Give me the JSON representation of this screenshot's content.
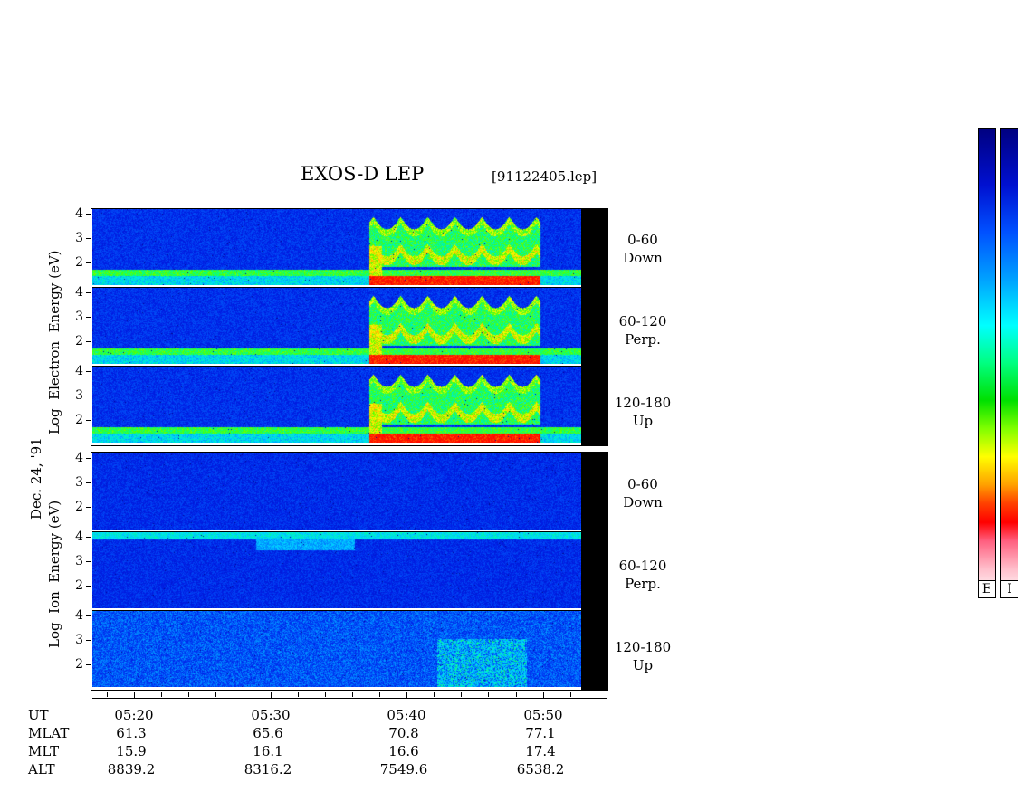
{
  "title": "EXOS-D LEP",
  "file_id": "[91122405.lep]",
  "date_label": "Dec. 24, '91",
  "electron_label": [
    "Log",
    "Electron",
    "Energy",
    "(eV)"
  ],
  "ion_label": [
    "Log",
    "Ion",
    "Energy",
    "(eV)"
  ],
  "y_ticks": [
    "4",
    "3",
    "2"
  ],
  "sectors": [
    {
      "range": "0-60",
      "dir": "Down"
    },
    {
      "range": "60-120",
      "dir": "Perp."
    },
    {
      "range": "120-180",
      "dir": "Up"
    }
  ],
  "colorbars": [
    {
      "label": "E"
    },
    {
      "label": "I"
    }
  ],
  "colors": {
    "spectrogram_bg": "#0010c8",
    "strip": "#000000"
  },
  "chart_data": {
    "type": "heatmap",
    "title": "EXOS-D LEP",
    "x_axis": {
      "row_labels": [
        "UT",
        "MLAT",
        "MLT",
        "ALT"
      ],
      "ticks": [
        {
          "UT": "05:20",
          "MLAT": "61.3",
          "MLT": "15.9",
          "ALT": "8839.2"
        },
        {
          "UT": "05:30",
          "MLAT": "65.6",
          "MLT": "16.1",
          "ALT": "8316.2"
        },
        {
          "UT": "05:40",
          "MLAT": "70.8",
          "MLT": "16.6",
          "ALT": "7549.6"
        },
        {
          "UT": "05:50",
          "MLAT": "77.1",
          "MLT": "17.4",
          "ALT": "6538.2"
        }
      ]
    },
    "y_axis": {
      "scale": "log",
      "ticks": [
        2,
        3,
        4
      ]
    },
    "panels": [
      {
        "species": "Electron",
        "sector": "0-60 Down"
      },
      {
        "species": "Electron",
        "sector": "60-120 Perp."
      },
      {
        "species": "Electron",
        "sector": "120-180 Up"
      },
      {
        "species": "Ion",
        "sector": "0-60 Down"
      },
      {
        "species": "Ion",
        "sector": "60-120 Perp."
      },
      {
        "species": "Ion",
        "sector": "120-180 Up"
      }
    ]
  }
}
